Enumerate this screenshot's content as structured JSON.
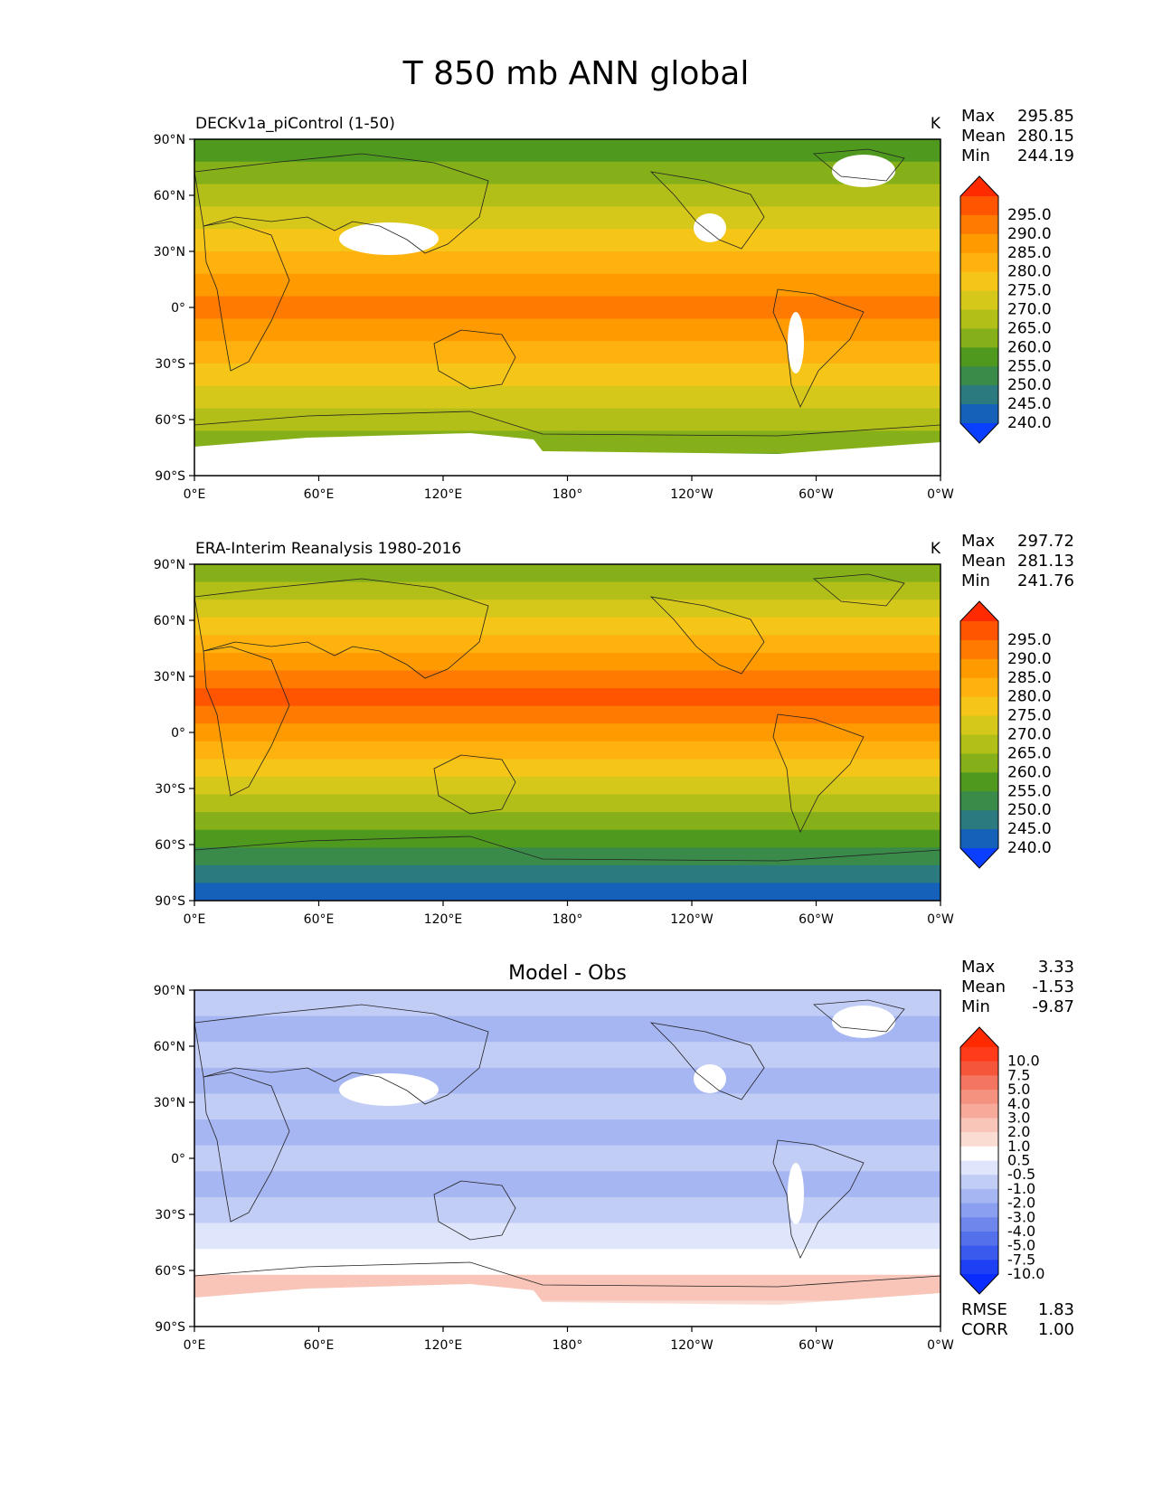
{
  "figure_title": "T 850 mb ANN global",
  "x_ticks": [
    "0°E",
    "60°E",
    "120°E",
    "180°",
    "120°W",
    "60°W",
    "0°W"
  ],
  "y_ticks": [
    "90°N",
    "60°N",
    "30°N",
    "0°",
    "30°S",
    "60°S",
    "90°S"
  ],
  "panels": [
    {
      "title": "DECKv1a_piControl (1-50)",
      "center_title": "",
      "units": "K",
      "stats": [
        {
          "label": "Max",
          "value": "295.85"
        },
        {
          "label": "Mean",
          "value": "280.15"
        },
        {
          "label": "Min",
          "value": "244.19"
        }
      ],
      "colorbar": {
        "labels": [
          "295.0",
          "290.0",
          "285.0",
          "280.0",
          "275.0",
          "270.0",
          "265.0",
          "260.0",
          "255.0",
          "250.0",
          "245.0",
          "240.0"
        ],
        "colors": [
          "#ff2a00",
          "#ff5500",
          "#ff7a00",
          "#ff9a00",
          "#ffb20d",
          "#f5c518",
          "#d6c81a",
          "#b2bf18",
          "#86b01a",
          "#4f9a1e",
          "#3a8a4a",
          "#2a7a80",
          "#1560b8",
          "#0a3fff"
        ]
      },
      "footer_stats": []
    },
    {
      "title": "ERA-Interim Reanalysis 1980-2016",
      "center_title": "",
      "units": "K",
      "stats": [
        {
          "label": "Max",
          "value": "297.72"
        },
        {
          "label": "Mean",
          "value": "281.13"
        },
        {
          "label": "Min",
          "value": "241.76"
        }
      ],
      "colorbar": {
        "labels": [
          "295.0",
          "290.0",
          "285.0",
          "280.0",
          "275.0",
          "270.0",
          "265.0",
          "260.0",
          "255.0",
          "250.0",
          "245.0",
          "240.0"
        ],
        "colors": [
          "#ff2a00",
          "#ff5500",
          "#ff7a00",
          "#ff9a00",
          "#ffb20d",
          "#f5c518",
          "#d6c81a",
          "#b2bf18",
          "#86b01a",
          "#4f9a1e",
          "#3a8a4a",
          "#2a7a80",
          "#1560b8",
          "#0a3fff"
        ]
      },
      "footer_stats": []
    },
    {
      "title": "",
      "center_title": "Model - Obs",
      "units": "",
      "stats": [
        {
          "label": "Max",
          "value": "3.33"
        },
        {
          "label": "Mean",
          "value": "-1.53"
        },
        {
          "label": "Min",
          "value": "-9.87"
        }
      ],
      "colorbar": {
        "labels": [
          "10.0",
          "7.5",
          "5.0",
          "4.0",
          "3.0",
          "2.0",
          "1.0",
          "0.5",
          "-0.5",
          "-1.0",
          "-2.0",
          "-3.0",
          "-4.0",
          "-5.0",
          "-7.5",
          "-10.0"
        ],
        "colors": [
          "#ff2a00",
          "#ff3b1a",
          "#f5563a",
          "#f47560",
          "#f5917f",
          "#f7aa9a",
          "#f9c5b8",
          "#fbdcd3",
          "#ffffff",
          "#dfe5fb",
          "#c2cdf6",
          "#a6b6f2",
          "#8a9ff0",
          "#6f87ed",
          "#5470ea",
          "#3a5aee",
          "#1d40f5",
          "#0a2cff"
        ]
      },
      "footer_stats": [
        {
          "label": "RMSE",
          "value": "1.83"
        },
        {
          "label": "CORR",
          "value": "1.00"
        }
      ]
    }
  ],
  "colors": {
    "model_bands": [
      "#4f9a1e",
      "#86b01a",
      "#b2bf18",
      "#d6c81a",
      "#f5c518",
      "#ffb20d",
      "#ff9a00",
      "#ff7a00",
      "#ff9a00",
      "#ffb20d",
      "#f5c518",
      "#d6c81a",
      "#b2bf18",
      "#86b01a",
      "#4f9a1e"
    ],
    "obs_bands": [
      "#86b01a",
      "#b2bf18",
      "#d6c81a",
      "#f5c518",
      "#ffb20d",
      "#ff9a00",
      "#ff7a00",
      "#ff5500",
      "#ff7a00",
      "#ff9a00",
      "#ffb20d",
      "#f5c518",
      "#d6c81a",
      "#b2bf18",
      "#86b01a",
      "#4f9a1e",
      "#3a8a4a",
      "#2a7a80",
      "#1560b8"
    ],
    "diff_bands": [
      "#c2cdf6",
      "#a6b6f2",
      "#c2cdf6",
      "#a6b6f2",
      "#c2cdf6",
      "#a6b6f2",
      "#c2cdf6",
      "#a6b6f2",
      "#c2cdf6",
      "#dfe5fb",
      "#ffffff",
      "#f9c5b8",
      "#fbdcd3"
    ]
  }
}
